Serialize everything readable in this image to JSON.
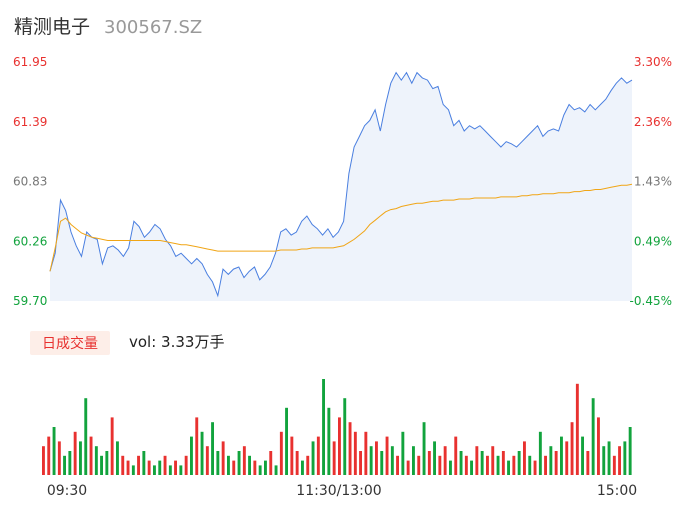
{
  "header": {
    "name": "精测电子",
    "code": "300567.SZ"
  },
  "colors": {
    "up": "#e8312f",
    "down": "#12a33d",
    "neutral_label": "#777777",
    "price_line": "#4a7fe0",
    "price_fill": "#eef3fb",
    "avg_line": "#f0a516",
    "volume_badge_bg": "#fdeee8",
    "volume_badge_text": "#e8312f"
  },
  "chart_data": [
    {
      "type": "line",
      "title": "",
      "y_left_ticks": [
        "61.95",
        "61.39",
        "60.83",
        "60.26",
        "59.70"
      ],
      "y_right_ticks": [
        "3.30%",
        "2.36%",
        "1.43%",
        "0.49%",
        "-0.45%"
      ],
      "ylim": [
        59.7,
        61.95
      ],
      "x_ticks": [
        "09:30",
        "11:30/13:00",
        "15:00"
      ],
      "reference_price": 60.83,
      "series": [
        {
          "role": "price",
          "values": [
            59.98,
            60.15,
            60.65,
            60.55,
            60.35,
            60.22,
            60.12,
            60.35,
            60.3,
            60.28,
            60.05,
            60.2,
            60.22,
            60.18,
            60.12,
            60.2,
            60.45,
            60.4,
            60.3,
            60.35,
            60.42,
            60.38,
            60.28,
            60.22,
            60.12,
            60.15,
            60.1,
            60.05,
            60.1,
            60.05,
            59.95,
            59.88,
            59.75,
            60.0,
            59.95,
            60.0,
            60.02,
            59.92,
            59.98,
            60.02,
            59.9,
            59.95,
            60.02,
            60.15,
            60.35,
            60.38,
            60.32,
            60.35,
            60.45,
            60.5,
            60.42,
            60.38,
            60.32,
            60.38,
            60.3,
            60.35,
            60.45,
            60.9,
            61.15,
            61.25,
            61.35,
            61.4,
            61.5,
            61.3,
            61.55,
            61.75,
            61.85,
            61.78,
            61.85,
            61.75,
            61.85,
            61.8,
            61.78,
            61.7,
            61.72,
            61.55,
            61.5,
            61.35,
            61.4,
            61.3,
            61.35,
            61.32,
            61.35,
            61.3,
            61.25,
            61.2,
            61.15,
            61.2,
            61.18,
            61.15,
            61.2,
            61.25,
            61.3,
            61.35,
            61.25,
            61.3,
            61.32,
            61.3,
            61.45,
            61.55,
            61.5,
            61.52,
            61.48,
            61.55,
            61.5,
            61.55,
            61.6,
            61.68,
            61.75,
            61.8,
            61.75,
            61.78
          ]
        },
        {
          "role": "average",
          "values": [
            59.98,
            60.2,
            60.45,
            60.48,
            60.42,
            60.38,
            60.34,
            60.32,
            60.3,
            60.29,
            60.28,
            60.27,
            60.27,
            60.27,
            60.27,
            60.27,
            60.27,
            60.27,
            60.27,
            60.27,
            60.27,
            60.27,
            60.26,
            60.25,
            60.24,
            60.23,
            60.23,
            60.22,
            60.21,
            60.2,
            60.19,
            60.18,
            60.17,
            60.17,
            60.17,
            60.17,
            60.17,
            60.17,
            60.17,
            60.17,
            60.17,
            60.17,
            60.17,
            60.17,
            60.18,
            60.18,
            60.18,
            60.18,
            60.19,
            60.19,
            60.2,
            60.2,
            60.2,
            60.2,
            60.2,
            60.21,
            60.22,
            60.25,
            60.28,
            60.32,
            60.36,
            60.42,
            60.46,
            60.5,
            60.54,
            60.56,
            60.57,
            60.59,
            60.6,
            60.61,
            60.62,
            60.62,
            60.63,
            60.64,
            60.64,
            60.65,
            60.65,
            60.65,
            60.66,
            60.66,
            60.66,
            60.67,
            60.67,
            60.67,
            60.67,
            60.67,
            60.68,
            60.68,
            60.68,
            60.68,
            60.69,
            60.69,
            60.7,
            60.7,
            60.71,
            60.71,
            60.71,
            60.72,
            60.72,
            60.72,
            60.73,
            60.73,
            60.74,
            60.74,
            60.75,
            60.75,
            60.76,
            60.77,
            60.78,
            60.79,
            60.79,
            60.8
          ]
        }
      ]
    },
    {
      "type": "bar",
      "title": "日成交量",
      "volume_label": "vol: 3.33万手",
      "bar_colors": [
        "r",
        "r",
        "g",
        "r",
        "g",
        "g",
        "r",
        "g",
        "g",
        "r",
        "g",
        "g",
        "g",
        "r",
        "g",
        "r",
        "r",
        "g",
        "r",
        "g",
        "r",
        "g",
        "g",
        "r",
        "g",
        "r",
        "g",
        "r",
        "g",
        "r",
        "g",
        "r",
        "g",
        "g",
        "r",
        "g",
        "r",
        "g",
        "r",
        "g",
        "r",
        "g",
        "g",
        "r",
        "g",
        "r",
        "g",
        "r",
        "r",
        "g",
        "r",
        "g",
        "r",
        "g",
        "g",
        "r",
        "r",
        "g",
        "r",
        "r",
        "r",
        "r",
        "g",
        "r",
        "g",
        "r",
        "g",
        "r",
        "g",
        "r",
        "g",
        "r",
        "g",
        "r",
        "g",
        "r",
        "r",
        "g",
        "r",
        "g",
        "r",
        "g",
        "r",
        "g",
        "r",
        "r",
        "g",
        "r",
        "g",
        "r",
        "g",
        "r",
        "g",
        "r",
        "g",
        "r",
        "g",
        "r",
        "g",
        "r",
        "r",
        "r",
        "g",
        "r",
        "g",
        "r",
        "g",
        "g",
        "r",
        "r",
        "g",
        "g"
      ],
      "values": [
        30,
        40,
        50,
        35,
        20,
        25,
        45,
        35,
        80,
        40,
        30,
        20,
        25,
        60,
        35,
        20,
        15,
        10,
        20,
        25,
        15,
        10,
        15,
        20,
        10,
        15,
        10,
        20,
        40,
        60,
        45,
        30,
        55,
        25,
        35,
        20,
        15,
        25,
        30,
        20,
        15,
        10,
        15,
        25,
        10,
        45,
        70,
        40,
        25,
        15,
        20,
        35,
        40,
        100,
        70,
        35,
        60,
        80,
        55,
        45,
        25,
        45,
        30,
        35,
        25,
        40,
        30,
        20,
        45,
        15,
        30,
        20,
        55,
        25,
        35,
        20,
        30,
        15,
        40,
        25,
        20,
        15,
        30,
        25,
        20,
        30,
        20,
        25,
        15,
        20,
        25,
        35,
        20,
        15,
        45,
        20,
        30,
        25,
        40,
        35,
        55,
        95,
        40,
        25,
        80,
        60,
        30,
        35,
        20,
        30,
        35,
        50
      ]
    }
  ]
}
